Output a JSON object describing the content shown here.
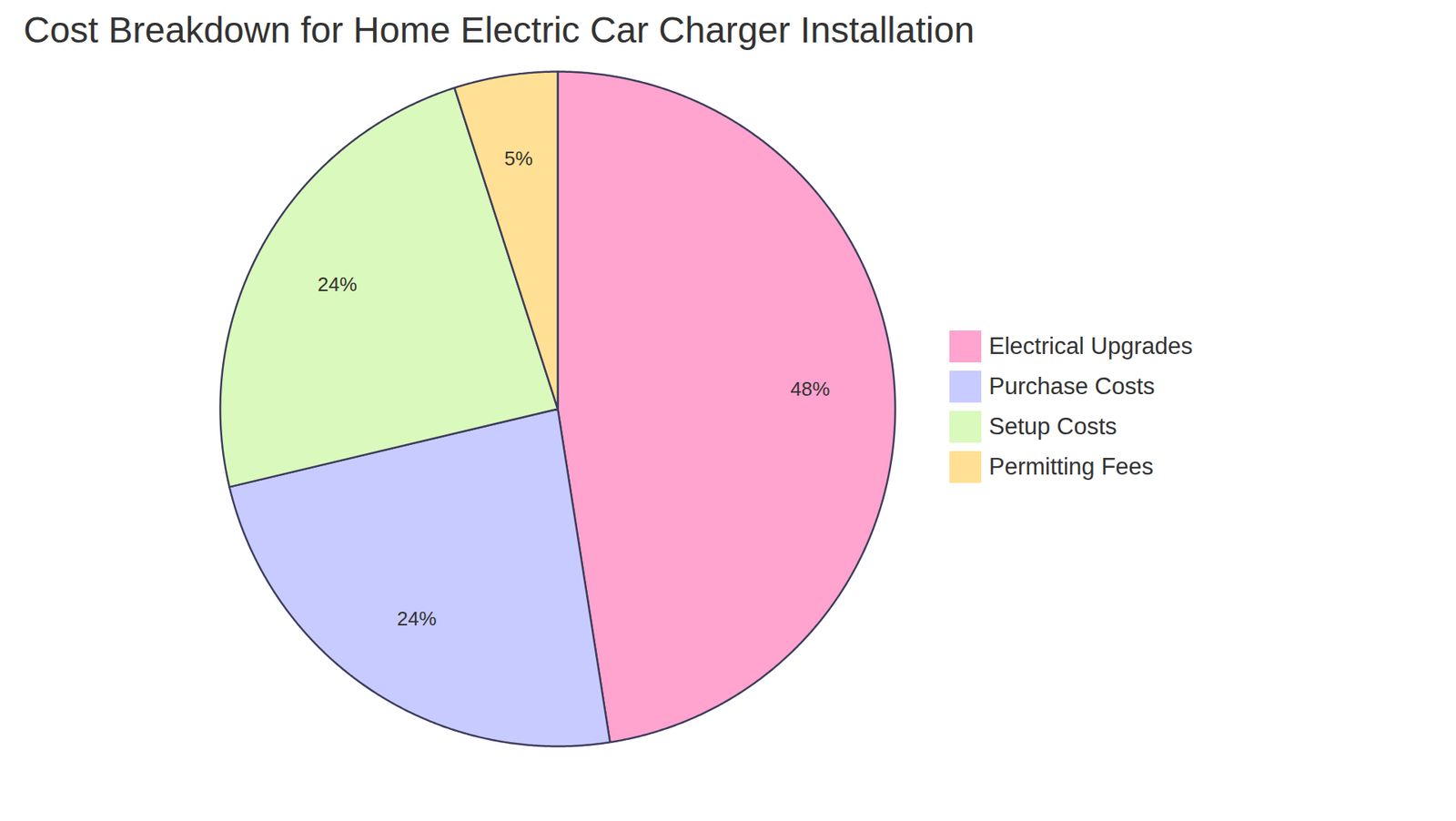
{
  "chart_data": {
    "type": "pie",
    "title": "Cost Breakdown for Home Electric Car Charger Installation",
    "categories": [
      "Electrical Upgrades",
      "Purchase Costs",
      "Setup Costs",
      "Permitting Fees"
    ],
    "values": [
      48,
      24,
      24,
      5
    ],
    "value_labels": [
      "48%",
      "24%",
      "24%",
      "5%"
    ],
    "colors": [
      "#ffa3cf",
      "#c8cbff",
      "#daf9bc",
      "#ffe094"
    ],
    "data_labels": true,
    "legend": "right"
  }
}
